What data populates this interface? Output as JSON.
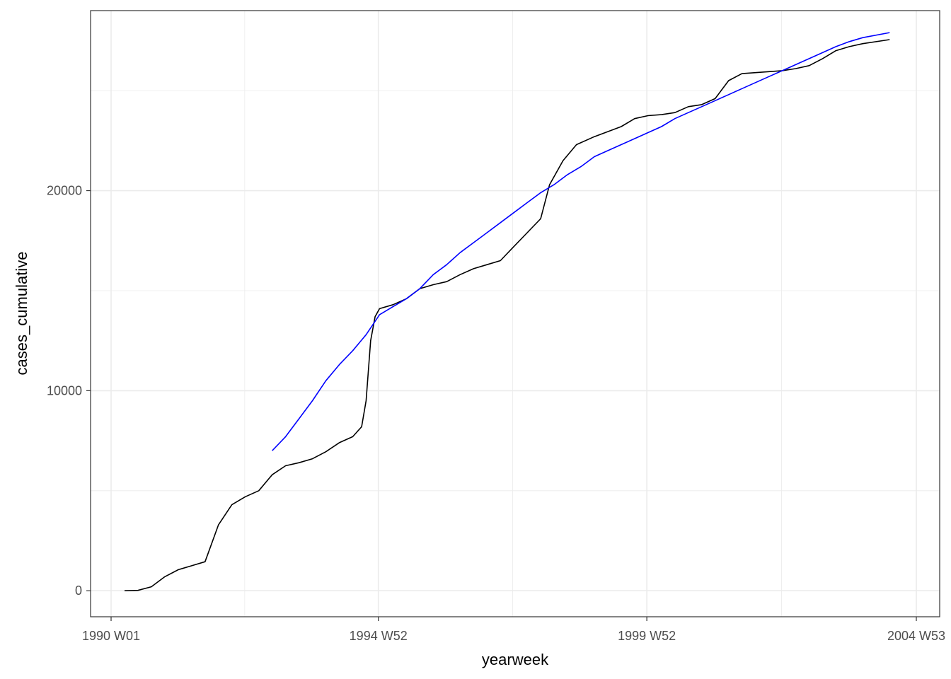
{
  "chart_data": {
    "type": "line",
    "xlabel": "yearweek",
    "ylabel": "cases_cumulative",
    "x_ticks": [
      "1990 W01",
      "1994 W52",
      "1999 W52",
      "2004 W53"
    ],
    "y_ticks": [
      "0",
      "10000",
      "20000"
    ],
    "ylim": [
      -1300,
      29000
    ],
    "grid": true,
    "legend": "none",
    "series": [
      {
        "color": "#000000",
        "points": [
          [
            "1990-04",
            0
          ],
          [
            "1990-07",
            20
          ],
          [
            "1990-10",
            200
          ],
          [
            "1991-01",
            700
          ],
          [
            "1991-04",
            1050
          ],
          [
            "1991-07",
            1250
          ],
          [
            "1991-10",
            1450
          ],
          [
            "1992-01",
            3300
          ],
          [
            "1992-04",
            4300
          ],
          [
            "1992-07",
            4700
          ],
          [
            "1992-10",
            5000
          ],
          [
            "1993-01",
            5800
          ],
          [
            "1993-04",
            6250
          ],
          [
            "1993-07",
            6400
          ],
          [
            "1993-10",
            6600
          ],
          [
            "1994-01",
            6950
          ],
          [
            "1994-04",
            7400
          ],
          [
            "1994-07",
            7700
          ],
          [
            "1994-09",
            8200
          ],
          [
            "1994-10",
            9500
          ],
          [
            "1994-11",
            12500
          ],
          [
            "1994-12",
            13700
          ],
          [
            "1995-01",
            14100
          ],
          [
            "1995-04",
            14300
          ],
          [
            "1995-07",
            14600
          ],
          [
            "1995-10",
            15100
          ],
          [
            "1996-01",
            15300
          ],
          [
            "1996-04",
            15450
          ],
          [
            "1996-07",
            15800
          ],
          [
            "1996-10",
            16100
          ],
          [
            "1997-01",
            16300
          ],
          [
            "1997-04",
            16500
          ],
          [
            "1997-07",
            17200
          ],
          [
            "1997-10",
            17900
          ],
          [
            "1998-01",
            18600
          ],
          [
            "1998-03",
            20300
          ],
          [
            "1998-06",
            21500
          ],
          [
            "1998-09",
            22300
          ],
          [
            "1999-01",
            22700
          ],
          [
            "1999-07",
            23200
          ],
          [
            "1999-10",
            23600
          ],
          [
            "2000-01",
            23750
          ],
          [
            "2000-04",
            23800
          ],
          [
            "2000-07",
            23900
          ],
          [
            "2000-10",
            24200
          ],
          [
            "2001-01",
            24300
          ],
          [
            "2001-04",
            24600
          ],
          [
            "2001-07",
            25500
          ],
          [
            "2001-10",
            25850
          ],
          [
            "2002-01",
            25900
          ],
          [
            "2002-04",
            25950
          ],
          [
            "2002-07",
            26000
          ],
          [
            "2002-10",
            26100
          ],
          [
            "2003-01",
            26250
          ],
          [
            "2003-04",
            26600
          ],
          [
            "2003-07",
            27000
          ],
          [
            "2003-10",
            27200
          ],
          [
            "2004-01",
            27350
          ],
          [
            "2004-07",
            27550
          ]
        ]
      },
      {
        "color": "#0000ff",
        "points": [
          [
            "1993-01",
            7000
          ],
          [
            "1993-04",
            7700
          ],
          [
            "1993-07",
            8600
          ],
          [
            "1993-10",
            9500
          ],
          [
            "1994-01",
            10500
          ],
          [
            "1994-04",
            11300
          ],
          [
            "1994-07",
            12000
          ],
          [
            "1994-10",
            12800
          ],
          [
            "1995-01",
            13800
          ],
          [
            "1995-04",
            14200
          ],
          [
            "1995-07",
            14600
          ],
          [
            "1995-10",
            15100
          ],
          [
            "1996-01",
            15800
          ],
          [
            "1996-04",
            16300
          ],
          [
            "1996-07",
            16900
          ],
          [
            "1996-10",
            17400
          ],
          [
            "1997-01",
            17900
          ],
          [
            "1997-04",
            18400
          ],
          [
            "1997-07",
            18900
          ],
          [
            "1997-10",
            19400
          ],
          [
            "1998-01",
            19900
          ],
          [
            "1998-04",
            20300
          ],
          [
            "1998-07",
            20800
          ],
          [
            "1998-10",
            21200
          ],
          [
            "1999-01",
            21700
          ],
          [
            "1999-04",
            22000
          ],
          [
            "1999-07",
            22300
          ],
          [
            "1999-10",
            22600
          ],
          [
            "2000-01",
            22900
          ],
          [
            "2000-04",
            23200
          ],
          [
            "2000-07",
            23600
          ],
          [
            "2000-10",
            23900
          ],
          [
            "2001-01",
            24200
          ],
          [
            "2001-04",
            24500
          ],
          [
            "2001-07",
            24800
          ],
          [
            "2001-10",
            25100
          ],
          [
            "2002-01",
            25400
          ],
          [
            "2002-04",
            25700
          ],
          [
            "2002-07",
            26000
          ],
          [
            "2002-10",
            26300
          ],
          [
            "2003-01",
            26600
          ],
          [
            "2003-04",
            26900
          ],
          [
            "2003-07",
            27200
          ],
          [
            "2003-10",
            27450
          ],
          [
            "2004-01",
            27650
          ],
          [
            "2004-07",
            27900
          ]
        ]
      }
    ]
  }
}
